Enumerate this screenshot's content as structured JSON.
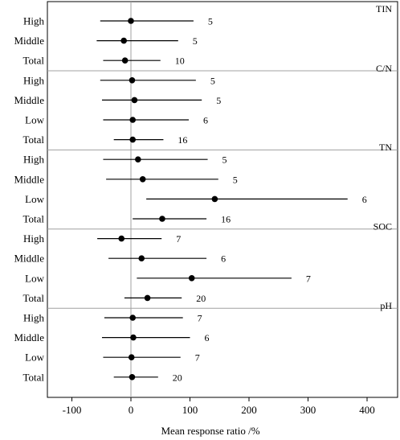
{
  "chart_data": {
    "type": "forest",
    "xlabel": "Mean response ratio /%",
    "xlim": [
      -150,
      450
    ],
    "xticks": [
      -100,
      0,
      100,
      200,
      300,
      400
    ],
    "reference_line": 0,
    "panels": [
      {
        "label": "TIN",
        "rows": [
          {
            "category": "High",
            "mean": 0,
            "lower": -52,
            "upper": 106,
            "n": "5"
          },
          {
            "category": "Middle",
            "mean": -12,
            "lower": -58,
            "upper": 80,
            "n": "5"
          },
          {
            "category": "Total",
            "mean": -10,
            "lower": -47,
            "upper": 50,
            "n": "10"
          }
        ]
      },
      {
        "label": "C/N",
        "rows": [
          {
            "category": "High",
            "mean": 2,
            "lower": -52,
            "upper": 110,
            "n": "5"
          },
          {
            "category": "Middle",
            "mean": 6,
            "lower": -49,
            "upper": 120,
            "n": "5"
          },
          {
            "category": "Low",
            "mean": 3,
            "lower": -47,
            "upper": 98,
            "n": "6"
          },
          {
            "category": "Total",
            "mean": 3,
            "lower": -29,
            "upper": 55,
            "n": "16"
          }
        ]
      },
      {
        "label": "TN",
        "rows": [
          {
            "category": "High",
            "mean": 12,
            "lower": -47,
            "upper": 130,
            "n": "5"
          },
          {
            "category": "Middle",
            "mean": 20,
            "lower": -42,
            "upper": 148,
            "n": "5"
          },
          {
            "category": "Low",
            "mean": 142,
            "lower": 26,
            "upper": 367,
            "n": "6"
          },
          {
            "category": "Total",
            "mean": 53,
            "lower": 3,
            "upper": 128,
            "n": "16"
          }
        ]
      },
      {
        "label": "SOC",
        "rows": [
          {
            "category": "High",
            "mean": -16,
            "lower": -57,
            "upper": 52,
            "n": "7"
          },
          {
            "category": "Middle",
            "mean": 18,
            "lower": -38,
            "upper": 128,
            "n": "6"
          },
          {
            "category": "Low",
            "mean": 103,
            "lower": 10,
            "upper": 272,
            "n": "7"
          },
          {
            "category": "Total",
            "mean": 28,
            "lower": -11,
            "upper": 86,
            "n": "20"
          }
        ]
      },
      {
        "label": "pH",
        "rows": [
          {
            "category": "High",
            "mean": 3,
            "lower": -45,
            "upper": 88,
            "n": "7"
          },
          {
            "category": "Middle",
            "mean": 4,
            "lower": -49,
            "upper": 100,
            "n": "6"
          },
          {
            "category": "Low",
            "mean": 1,
            "lower": -47,
            "upper": 84,
            "n": "7"
          },
          {
            "category": "Total",
            "mean": 2,
            "lower": -29,
            "upper": 46,
            "n": "20"
          }
        ]
      }
    ]
  }
}
